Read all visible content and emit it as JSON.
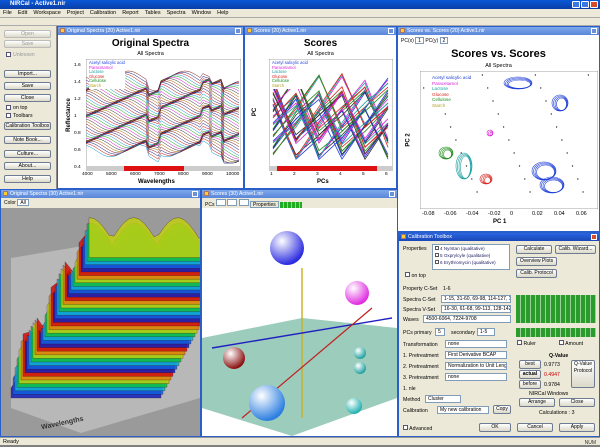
{
  "app": {
    "title": "NIRCal - Active1.nir"
  },
  "menu": [
    "File",
    "Edit",
    "Workspace",
    "Project",
    "Calibration",
    "Report",
    "Tables",
    "Spectra",
    "Window",
    "Help"
  ],
  "sidebar": {
    "buttons": [
      "Open",
      "Save",
      "Import...",
      "Save",
      "Close",
      "Calibration Toolbox",
      "Note Book...",
      "Culture...",
      "About...",
      "Help"
    ],
    "checks": [
      "Unknown",
      "on top",
      "Toolbars"
    ]
  },
  "win_spectra": {
    "title": "Original Spectra (20) Active1.nir",
    "chart_title": "Original Spectra",
    "subtitle": "All Spectra",
    "ylabel": "Reflectance",
    "xlabel": "Wavelengths",
    "xticks": [
      "4000",
      "5000",
      "6000",
      "7000",
      "8000",
      "9000",
      "10000"
    ],
    "yticks": [
      "1.6",
      "1.4",
      "1.2",
      "1",
      "0.8",
      "0.6",
      "0.4"
    ],
    "legend": [
      "Acetyl salicylic acid",
      "Paracetamol",
      "Lactose",
      "Glucose",
      "Cellulose",
      "Starch"
    ]
  },
  "win_scores": {
    "title": "Scores (20) Active1.nir",
    "chart_title": "Scores",
    "subtitle": "All Spectra",
    "ylabel": "PC",
    "xlabel": "PCs",
    "xticks": [
      "1",
      "2",
      "3",
      "4",
      "5",
      "6"
    ],
    "legend": [
      "Acetyl salicylic acid",
      "Paracetamol",
      "Lactose",
      "Glucose",
      "Cellulose",
      "Starch"
    ]
  },
  "win_svs": {
    "title": "Scores vs. Scores (20) Active1.nir",
    "pcx_label": "PC(x)",
    "pcx": "1",
    "pcy_label": "PC(y)",
    "pcy": "2",
    "chart_title": "Scores vs. Scores",
    "subtitle": "All Spectra",
    "xlabel": "PC 1",
    "ylabel": "PC 2",
    "xticks": [
      "-0.08",
      "-0.06",
      "-0.04",
      "-0.02",
      "0",
      "0.02",
      "0.04",
      "0.06"
    ],
    "legend": [
      "Acetyl salicylic acid",
      "Paracetamol",
      "Lactose",
      "Glucose",
      "Cellulose",
      "Starch"
    ]
  },
  "win_3d": {
    "title": "Original Spectra (30) Active1.nir",
    "color_label": "Color",
    "color_value": "All",
    "axis": "Wavelengths"
  },
  "win_scores3d": {
    "title": "Scores (30) Active1.nir",
    "pcs_label": "PCs",
    "properties_label": "Properties"
  },
  "toolbox": {
    "title": "Calibration Toolbox",
    "properties_label": "Properties",
    "properties": [
      "4 Nyrstan (qualitative)",
      "5 Oxprylcyle (qualitative)",
      "6 Erythromycin (qualitative)"
    ],
    "on_top": "on top",
    "calculate": "Calculate",
    "calib_wizard": "Calib. Wizard...",
    "overview_plots": "Overview Plots",
    "calib_protocol": "Calib. Protocol",
    "property_cset_label": "Property C-Set",
    "property_cset": "1-6",
    "spectra_cset_label": "Spectra C-Set",
    "spectra_cset": "1-15, 31-60, 69-98, 114-127, 143-",
    "spectra_vset_label": "Spectra V-Set",
    "spectra_vset": "16-30, 61-68, 99-113, 128-142, 15",
    "waves_label": "Waves",
    "waves": "4500-6064, 7224-9708",
    "pcs_primary_label": "PCs primary",
    "pcs_primary": "5",
    "secondary_label": "secondary",
    "secondary": "1-5",
    "ruler": "Ruler",
    "amount": "Amount",
    "transformation_label": "Transformation",
    "transformation": "none",
    "pretreat1_label": "1. Pretreatment",
    "pretreat1": "First Derivative BCAP",
    "pretreat2_label": "2. Pretreatment",
    "pretreat2": "Normalization to Unit Length*",
    "pretreat3_label": "3. Pretreatment",
    "pretreat3": "none",
    "file_label": "1. nle",
    "method_label": "Method",
    "method": "Cluster",
    "calibration_label": "Calibration",
    "calibration": "My new calibration",
    "copy": "Copy",
    "q_value_label": "Q-Value",
    "best_label": "best",
    "best": "0.9773",
    "actual_label": "actual",
    "actual": "0.4947",
    "before_label": "before",
    "before": "0.9784",
    "q_value_protocol": "Q-Value Protocol",
    "nircal_windows": "NIRCal Windows",
    "arrange": "Arrange",
    "close": "Close",
    "calculations": "Calculations : 3",
    "advanced": "Advanced",
    "ok": "OK",
    "cancel": "Cancel",
    "apply": "Apply"
  },
  "status": {
    "text": "Ready",
    "right": "NUM"
  }
}
